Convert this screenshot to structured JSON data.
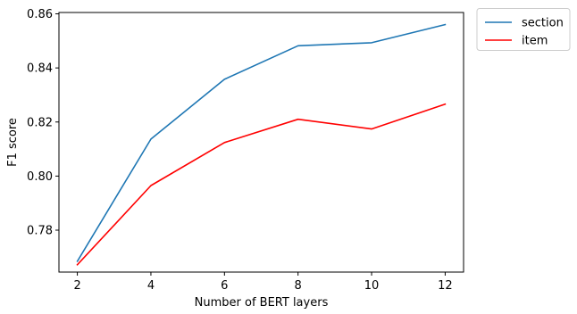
{
  "chart_data": {
    "type": "line",
    "title": "",
    "xlabel": "Number of BERT layers",
    "ylabel": "F1 score",
    "x": [
      2,
      4,
      6,
      8,
      10,
      12
    ],
    "xticks": [
      "2",
      "4",
      "6",
      "8",
      "10",
      "12"
    ],
    "yticks": [
      "0.78",
      "0.80",
      "0.82",
      "0.84",
      "0.86"
    ],
    "xlim": [
      1.5,
      12.5
    ],
    "ylim": [
      0.7645,
      0.8605
    ],
    "grid": false,
    "legend_position": "outside-top-right",
    "series": [
      {
        "name": "section",
        "color": "#1f77b4",
        "values": [
          0.7685,
          0.8137,
          0.8358,
          0.8482,
          0.8493,
          0.856
        ]
      },
      {
        "name": "item",
        "color": "#ff0000",
        "values": [
          0.7672,
          0.7965,
          0.8124,
          0.821,
          0.8174,
          0.8266
        ]
      }
    ]
  }
}
